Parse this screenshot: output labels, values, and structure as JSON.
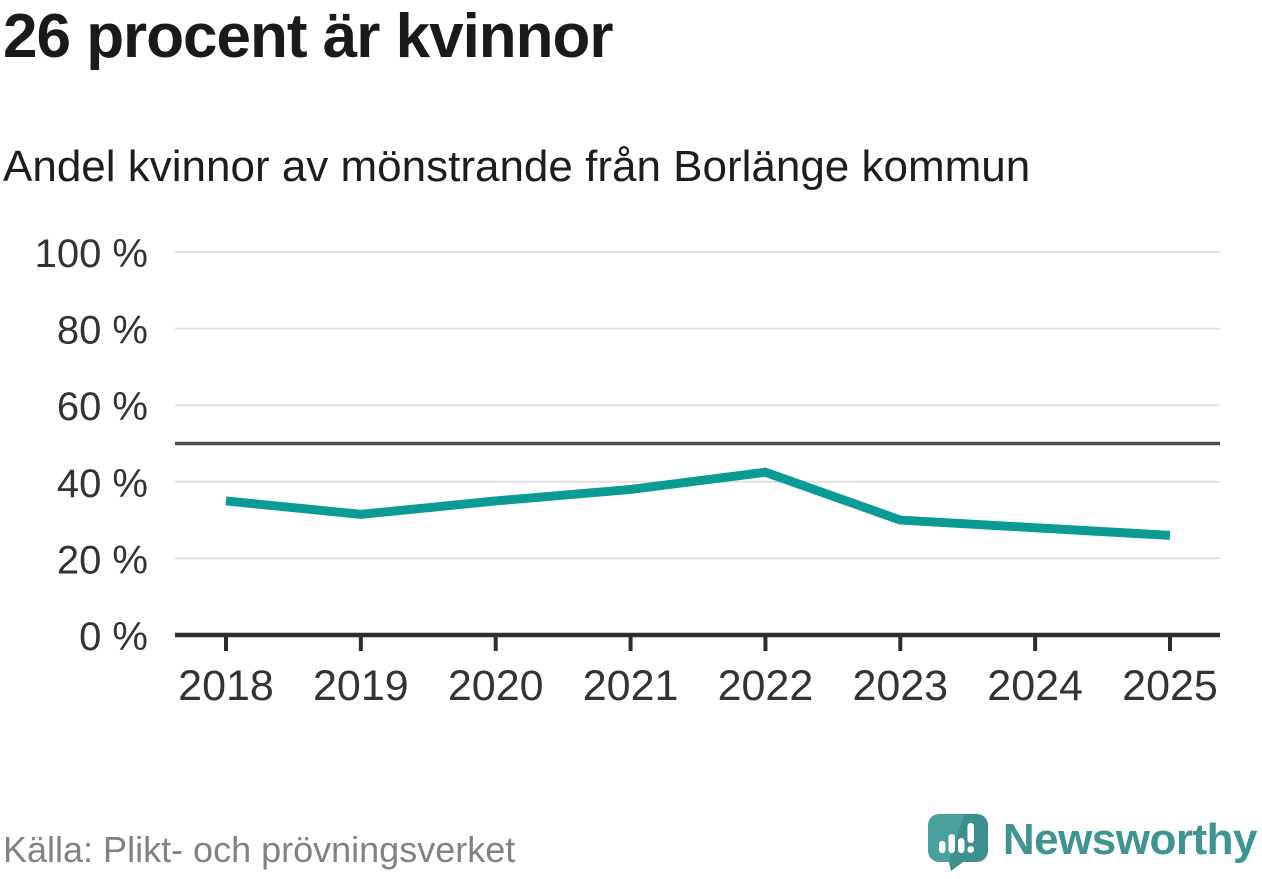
{
  "title": "26 procent är kvinnor",
  "subtitle": "Andel kvinnor av mönstrande från Borlänge kommun",
  "source": "Källa: Plikt- och prövningsverket",
  "brand": {
    "name": "Newsworthy",
    "logo_icon": "newsworthy-speech-bubble-bar-chart-icon"
  },
  "colors": {
    "line": "#0a9b96",
    "grid": "#e1e1e1",
    "reference_line": "#4d4d4d",
    "axis": "#2d2d2d",
    "tick_label": "#333333",
    "title_text": "#1a1a1a",
    "source_text": "#828282",
    "brand_teal": "#3e9492",
    "logo_fill_light": "#4aa09d",
    "logo_fill_dark": "#3d8f8c"
  },
  "chart_data": {
    "type": "line",
    "title": "26 procent är kvinnor",
    "subtitle": "Andel kvinnor av mönstrande från Borlänge kommun",
    "x": [
      2018,
      2019,
      2020,
      2021,
      2022,
      2023,
      2024,
      2025
    ],
    "xtick_labels": [
      "2018",
      "2019",
      "2020",
      "2021",
      "2022",
      "2023",
      "2024",
      "2025"
    ],
    "series": [
      {
        "name": "Andel kvinnor av mönstrande",
        "values": [
          35,
          31.5,
          35,
          38,
          42.5,
          30,
          28,
          26
        ]
      }
    ],
    "unit": "%",
    "xlabel": "",
    "ylabel": "",
    "ylim": [
      0,
      100
    ],
    "yticks": [
      0,
      20,
      40,
      60,
      80,
      100
    ],
    "ytick_labels": [
      "0 %",
      "20 %",
      "40 %",
      "60 %",
      "80 %",
      "100 %"
    ],
    "reference_line": 50,
    "grid": "horizontal",
    "legend": "none"
  }
}
